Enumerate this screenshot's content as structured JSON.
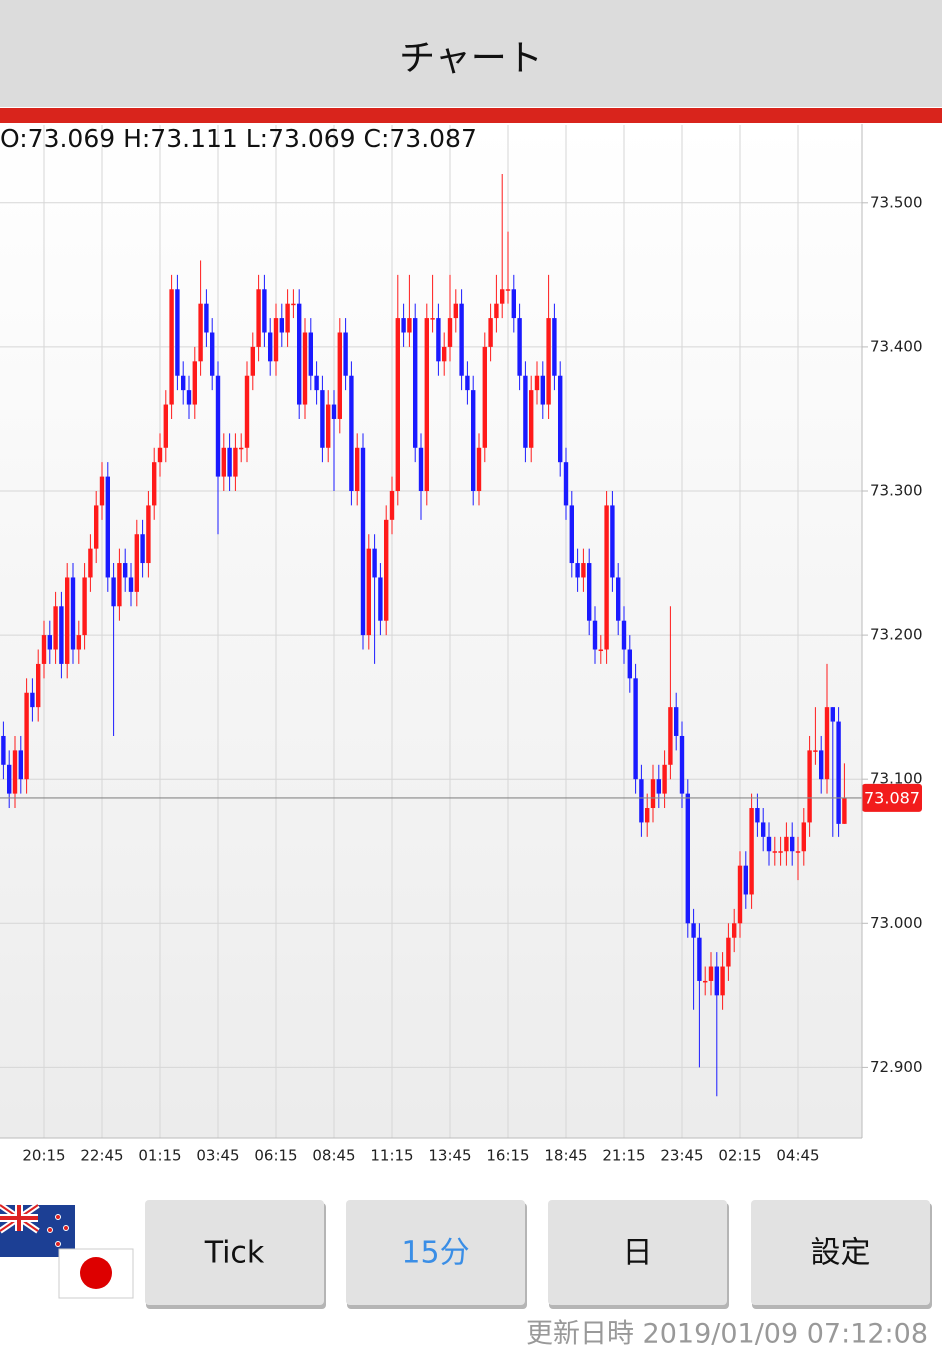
{
  "header": {
    "title": "チャート"
  },
  "chart_data": {
    "type": "candlestick",
    "ohlc_text": "O:73.069 H:73.111 L:73.069 C:73.087",
    "up_color": "#ff1a1a",
    "down_color": "#1a1aff",
    "ylim": [
      72.851,
      73.554
    ],
    "yticks": [
      {
        "value": 73.5,
        "label": "73.500"
      },
      {
        "value": 73.4,
        "label": "73.400"
      },
      {
        "value": 73.3,
        "label": "73.300"
      },
      {
        "value": 73.2,
        "label": "73.200"
      },
      {
        "value": 73.1,
        "label": "73.100"
      },
      {
        "value": 73.0,
        "label": "73.000"
      },
      {
        "value": 72.9,
        "label": "72.900"
      }
    ],
    "grid": true,
    "categories": [
      null,
      null,
      null,
      null,
      null,
      null,
      null,
      "20:15",
      null,
      null,
      null,
      null,
      null,
      null,
      null,
      null,
      null,
      "22:45",
      null,
      null,
      null,
      null,
      null,
      null,
      null,
      null,
      null,
      "01:15",
      null,
      null,
      null,
      null,
      null,
      null,
      null,
      null,
      null,
      "03:45",
      null,
      null,
      null,
      null,
      null,
      null,
      null,
      null,
      null,
      "06:15",
      null,
      null,
      null,
      null,
      null,
      null,
      null,
      null,
      null,
      "08:45",
      null,
      null,
      null,
      null,
      null,
      null,
      null,
      null,
      null,
      "11:15",
      null,
      null,
      null,
      null,
      null,
      null,
      null,
      null,
      null,
      "13:45",
      null,
      null,
      null,
      null,
      null,
      null,
      null,
      null,
      null,
      "16:15",
      null,
      null,
      null,
      null,
      null,
      null,
      null,
      null,
      null,
      "18:45",
      null,
      null,
      null,
      null,
      null,
      null,
      null,
      null,
      null,
      "21:15",
      null,
      null,
      null,
      null,
      null,
      null,
      null,
      null,
      null,
      "23:45",
      null,
      null,
      null,
      null,
      null,
      null,
      null,
      null,
      null,
      "02:15",
      null,
      null,
      null,
      null,
      null,
      null,
      null,
      null,
      null,
      "04:45",
      null,
      null,
      null,
      null,
      null,
      null,
      null,
      null
    ],
    "open": [
      73.13,
      73.11,
      73.09,
      73.12,
      73.1,
      73.16,
      73.15,
      73.18,
      73.2,
      73.19,
      73.22,
      73.18,
      73.24,
      73.19,
      73.2,
      73.24,
      73.26,
      73.29,
      73.31,
      73.24,
      73.22,
      73.25,
      73.24,
      73.23,
      73.27,
      73.25,
      73.29,
      73.32,
      73.33,
      73.36,
      73.44,
      73.38,
      73.37,
      73.36,
      73.39,
      73.43,
      73.41,
      73.38,
      73.31,
      73.33,
      73.31,
      73.33,
      73.33,
      73.38,
      73.4,
      73.44,
      73.41,
      73.39,
      73.42,
      73.41,
      73.43,
      73.43,
      73.36,
      73.41,
      73.38,
      73.37,
      73.33,
      73.36,
      73.35,
      73.41,
      73.38,
      73.3,
      73.33,
      73.2,
      73.26,
      73.24,
      73.21,
      73.28,
      73.3,
      73.42,
      73.41,
      73.42,
      73.33,
      73.3,
      73.42,
      73.42,
      73.39,
      73.4,
      73.42,
      73.43,
      73.38,
      73.37,
      73.3,
      73.33,
      73.4,
      73.42,
      73.43,
      73.44,
      73.44,
      73.42,
      73.38,
      73.33,
      73.37,
      73.38,
      73.36,
      73.42,
      73.38,
      73.32,
      73.29,
      73.25,
      73.24,
      73.25,
      73.21,
      73.19,
      73.19,
      73.29,
      73.24,
      73.21,
      73.19,
      73.17,
      73.1,
      73.07,
      73.08,
      73.1,
      73.09,
      73.11,
      73.15,
      73.13,
      73.09,
      73.0,
      72.99,
      72.96,
      72.96,
      72.97,
      72.95,
      72.97,
      72.99,
      73.0,
      73.04,
      73.02,
      73.08,
      73.07,
      73.06,
      73.05,
      73.05,
      73.05,
      73.06,
      73.05,
      73.05,
      73.07,
      73.12,
      73.12,
      73.1,
      73.15,
      73.14,
      73.069
    ],
    "high": [
      73.14,
      73.12,
      73.13,
      73.13,
      73.17,
      73.17,
      73.19,
      73.21,
      73.21,
      73.23,
      73.23,
      73.25,
      73.25,
      73.21,
      73.25,
      73.27,
      73.3,
      73.32,
      73.32,
      73.25,
      73.26,
      73.26,
      73.25,
      73.28,
      73.28,
      73.3,
      73.33,
      73.34,
      73.37,
      73.45,
      73.45,
      73.39,
      73.38,
      73.4,
      73.46,
      73.44,
      73.42,
      73.39,
      73.34,
      73.34,
      73.34,
      73.34,
      73.39,
      73.41,
      73.45,
      73.45,
      73.42,
      73.43,
      73.43,
      73.44,
      73.44,
      73.44,
      73.42,
      73.42,
      73.39,
      73.38,
      73.37,
      73.37,
      73.42,
      73.42,
      73.39,
      73.34,
      73.34,
      73.27,
      73.27,
      73.25,
      73.29,
      73.31,
      73.45,
      73.43,
      73.45,
      73.43,
      73.34,
      73.43,
      73.45,
      73.43,
      73.41,
      73.45,
      73.44,
      73.44,
      73.39,
      73.38,
      73.34,
      73.41,
      73.43,
      73.45,
      73.52,
      73.48,
      73.45,
      73.43,
      73.39,
      73.38,
      73.39,
      73.39,
      73.45,
      73.43,
      73.39,
      73.33,
      73.3,
      73.26,
      73.26,
      73.26,
      73.22,
      73.2,
      73.3,
      73.3,
      73.25,
      73.22,
      73.2,
      73.18,
      73.11,
      73.09,
      73.11,
      73.11,
      73.12,
      73.22,
      73.16,
      73.14,
      73.1,
      73.01,
      73.0,
      72.97,
      72.98,
      72.98,
      72.98,
      73.0,
      73.01,
      73.05,
      73.05,
      73.09,
      73.09,
      73.08,
      73.07,
      73.06,
      73.06,
      73.07,
      73.07,
      73.06,
      73.08,
      73.13,
      73.15,
      73.13,
      73.18,
      73.15,
      73.15,
      73.111
    ],
    "low": [
      73.1,
      73.08,
      73.08,
      73.09,
      73.09,
      73.14,
      73.14,
      73.17,
      73.18,
      73.18,
      73.17,
      73.17,
      73.18,
      73.18,
      73.19,
      73.23,
      73.25,
      73.28,
      73.23,
      73.13,
      73.21,
      73.23,
      73.22,
      73.22,
      73.24,
      73.24,
      73.28,
      73.31,
      73.32,
      73.35,
      73.37,
      73.36,
      73.35,
      73.35,
      73.38,
      73.4,
      73.37,
      73.27,
      73.3,
      73.3,
      73.3,
      73.32,
      73.32,
      73.37,
      73.39,
      73.4,
      73.38,
      73.38,
      73.4,
      73.4,
      73.42,
      73.35,
      73.35,
      73.37,
      73.36,
      73.32,
      73.32,
      73.3,
      73.34,
      73.37,
      73.29,
      73.29,
      73.19,
      73.19,
      73.18,
      73.2,
      73.2,
      73.27,
      73.29,
      73.4,
      73.4,
      73.32,
      73.28,
      73.29,
      73.41,
      73.38,
      73.38,
      73.39,
      73.41,
      73.37,
      73.36,
      73.29,
      73.29,
      73.32,
      73.39,
      73.41,
      73.42,
      73.43,
      73.41,
      73.37,
      73.32,
      73.32,
      73.36,
      73.35,
      73.35,
      73.37,
      73.31,
      73.28,
      73.24,
      73.23,
      73.23,
      73.2,
      73.18,
      73.18,
      73.18,
      73.23,
      73.2,
      73.18,
      73.16,
      73.09,
      73.06,
      73.06,
      73.07,
      73.08,
      73.08,
      73.1,
      73.12,
      73.08,
      72.99,
      72.94,
      72.9,
      72.95,
      72.95,
      72.88,
      72.94,
      72.96,
      72.98,
      72.99,
      73.01,
      73.01,
      73.06,
      73.05,
      73.04,
      73.04,
      73.04,
      73.04,
      73.04,
      73.03,
      73.04,
      73.06,
      73.11,
      73.09,
      73.09,
      73.06,
      73.06,
      73.069
    ],
    "close": [
      73.11,
      73.09,
      73.12,
      73.1,
      73.16,
      73.15,
      73.18,
      73.2,
      73.19,
      73.22,
      73.18,
      73.24,
      73.19,
      73.2,
      73.24,
      73.26,
      73.29,
      73.31,
      73.24,
      73.22,
      73.25,
      73.24,
      73.23,
      73.27,
      73.25,
      73.29,
      73.32,
      73.33,
      73.36,
      73.44,
      73.38,
      73.37,
      73.36,
      73.39,
      73.43,
      73.41,
      73.38,
      73.31,
      73.33,
      73.31,
      73.33,
      73.33,
      73.38,
      73.4,
      73.44,
      73.41,
      73.39,
      73.42,
      73.41,
      73.43,
      73.43,
      73.36,
      73.41,
      73.38,
      73.37,
      73.33,
      73.36,
      73.35,
      73.41,
      73.38,
      73.3,
      73.33,
      73.2,
      73.26,
      73.24,
      73.21,
      73.28,
      73.3,
      73.42,
      73.41,
      73.42,
      73.33,
      73.3,
      73.42,
      73.42,
      73.39,
      73.4,
      73.42,
      73.43,
      73.38,
      73.37,
      73.3,
      73.33,
      73.4,
      73.42,
      73.43,
      73.44,
      73.44,
      73.42,
      73.38,
      73.33,
      73.37,
      73.38,
      73.36,
      73.42,
      73.38,
      73.32,
      73.29,
      73.25,
      73.24,
      73.25,
      73.21,
      73.19,
      73.19,
      73.29,
      73.24,
      73.21,
      73.19,
      73.17,
      73.1,
      73.07,
      73.08,
      73.1,
      73.09,
      73.11,
      73.15,
      73.13,
      73.09,
      73.0,
      72.99,
      72.96,
      72.96,
      72.97,
      72.95,
      72.97,
      72.99,
      73.0,
      73.04,
      73.02,
      73.08,
      73.07,
      73.06,
      73.05,
      73.05,
      73.05,
      73.06,
      73.05,
      73.05,
      73.07,
      73.12,
      73.12,
      73.1,
      73.15,
      73.14,
      73.069,
      73.087
    ]
  },
  "buttons": [
    "Tick",
    "15分",
    "日",
    "設定"
  ],
  "footer": {
    "updated": "更新日時 2019/01/09 07:12:08"
  }
}
